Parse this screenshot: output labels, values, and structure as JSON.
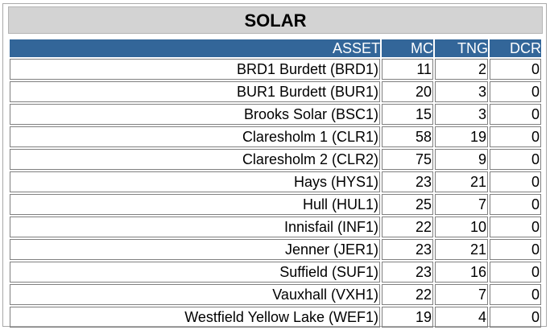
{
  "title": "SOLAR",
  "columns": {
    "asset": "ASSET",
    "mc": "MC",
    "tng": "TNG",
    "dcr": "DCR"
  },
  "rows": [
    {
      "asset": "BRD1 Burdett (BRD1)",
      "mc": "11",
      "tng": "2",
      "dcr": "0"
    },
    {
      "asset": "BUR1 Burdett (BUR1)",
      "mc": "20",
      "tng": "3",
      "dcr": "0"
    },
    {
      "asset": "Brooks Solar (BSC1)",
      "mc": "15",
      "tng": "3",
      "dcr": "0"
    },
    {
      "asset": "Claresholm 1 (CLR1)",
      "mc": "58",
      "tng": "19",
      "dcr": "0"
    },
    {
      "asset": "Claresholm 2 (CLR2)",
      "mc": "75",
      "tng": "9",
      "dcr": "0"
    },
    {
      "asset": "Hays (HYS1)",
      "mc": "23",
      "tng": "21",
      "dcr": "0"
    },
    {
      "asset": "Hull (HUL1)",
      "mc": "25",
      "tng": "7",
      "dcr": "0"
    },
    {
      "asset": "Innisfail (INF1)",
      "mc": "22",
      "tng": "10",
      "dcr": "0"
    },
    {
      "asset": "Jenner (JER1)",
      "mc": "23",
      "tng": "21",
      "dcr": "0"
    },
    {
      "asset": "Suffield (SUF1)",
      "mc": "23",
      "tng": "16",
      "dcr": "0"
    },
    {
      "asset": "Vauxhall (VXH1)",
      "mc": "22",
      "tng": "7",
      "dcr": "0"
    },
    {
      "asset": "Westfield Yellow Lake (WEF1)",
      "mc": "19",
      "tng": "4",
      "dcr": "0"
    }
  ],
  "colors": {
    "header_bg": "#336699",
    "header_text": "#ffffff",
    "title_bg": "#d3d3d3",
    "cell_border": "#808080"
  }
}
